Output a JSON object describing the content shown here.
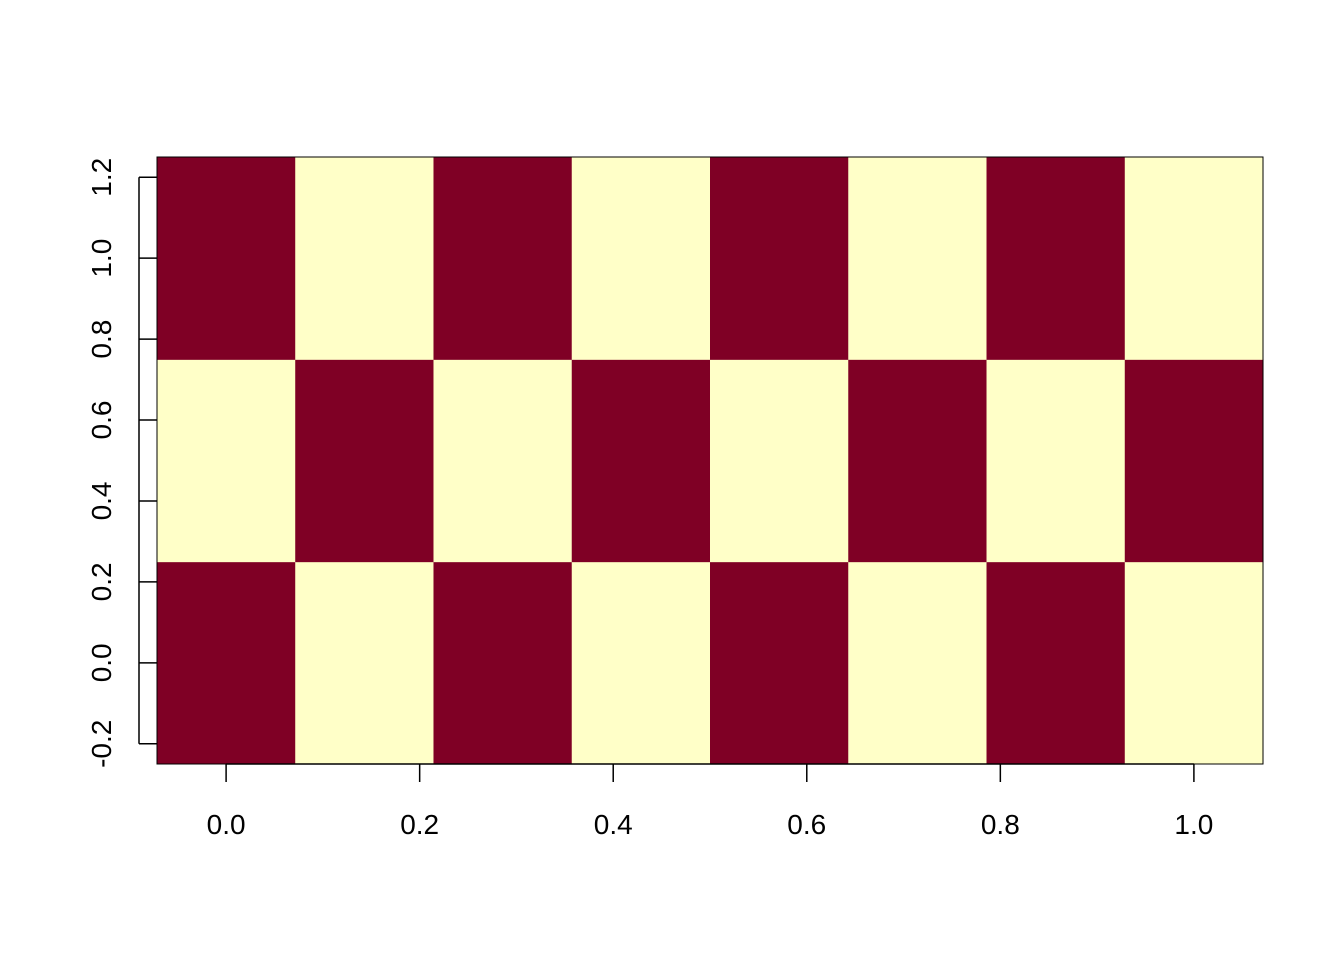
{
  "chart_data": {
    "type": "heatmap",
    "title": "",
    "xlabel": "",
    "ylabel": "",
    "x_centers": [
      0.0,
      0.142857,
      0.285714,
      0.428571,
      0.571429,
      0.714286,
      0.857143,
      1.0
    ],
    "y_centers": [
      0.0,
      0.5,
      1.0
    ],
    "xlim": [
      -0.0714,
      1.0714
    ],
    "ylim": [
      -0.25,
      1.25
    ],
    "x_ticks": [
      "0.0",
      "0.2",
      "0.4",
      "0.6",
      "0.8",
      "1.0"
    ],
    "y_ticks": [
      "-0.2",
      "0.0",
      "0.2",
      "0.4",
      "0.6",
      "0.8",
      "1.0",
      "1.2"
    ],
    "values": [
      [
        1,
        0,
        1,
        0,
        1,
        0,
        1,
        0
      ],
      [
        0,
        1,
        0,
        1,
        0,
        1,
        0,
        1
      ],
      [
        1,
        0,
        1,
        0,
        1,
        0,
        1,
        0
      ]
    ],
    "colors": {
      "high": "#7F0025",
      "low": "#FFFFC8"
    },
    "grid": false,
    "legend": "none"
  }
}
